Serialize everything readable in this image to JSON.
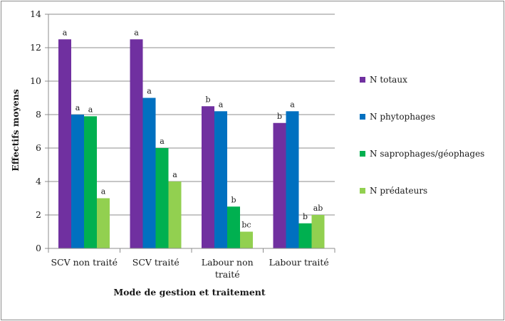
{
  "chart_data": {
    "type": "bar",
    "xlabel": "Mode de gestion et traitement",
    "ylabel": "Effectifs moyens",
    "ylim": [
      0,
      14
    ],
    "yticks": [
      0,
      2,
      4,
      6,
      8,
      10,
      12,
      14
    ],
    "grid": "horizontal",
    "legend_position": "right",
    "categories": [
      [
        "SCV non traité"
      ],
      [
        "SCV traité"
      ],
      [
        "Labour non",
        "traité"
      ],
      [
        "Labour traité"
      ]
    ],
    "series": [
      {
        "name": "N totaux",
        "color": "#7030a0",
        "values": [
          12.5,
          12.5,
          8.5,
          7.5
        ],
        "labels": [
          "a",
          "a",
          "b",
          "b"
        ]
      },
      {
        "name": "N phytophages",
        "color": "#0070c0",
        "values": [
          8.0,
          9.0,
          8.2,
          8.2
        ],
        "labels": [
          "a",
          "a",
          "a",
          "a"
        ]
      },
      {
        "name": "N saprophages/géophages",
        "color": "#00b050",
        "values": [
          7.9,
          6.0,
          2.5,
          1.5
        ],
        "labels": [
          "a",
          "a",
          "b",
          "b"
        ]
      },
      {
        "name": "N prédateurs",
        "color": "#92d050",
        "values": [
          3.0,
          4.0,
          1.0,
          2.0
        ],
        "labels": [
          "a",
          "a",
          "bc",
          "ab"
        ]
      }
    ]
  }
}
